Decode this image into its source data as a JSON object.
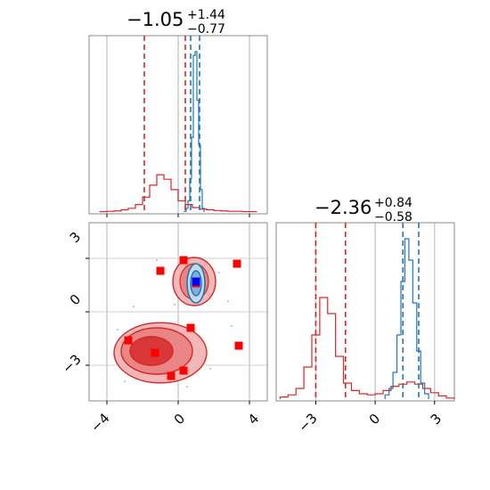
{
  "chart_data": [
    {
      "type": "histogram",
      "panel": "param1-marginal",
      "title": {
        "median": "−1.05",
        "plus": "+1.44",
        "minus": "−0.77"
      },
      "xlim": [
        -5,
        5
      ],
      "colors": {
        "red": "#d62728",
        "blue": "#1f77b4"
      },
      "vlines_red": [
        -1.9,
        0.4
      ],
      "vlines_blue": [
        0.7,
        1.2
      ],
      "series": [
        {
          "name": "",
          "color": "#d62728",
          "x": [
            -4.2,
            -3.8,
            -3.4,
            -3.0,
            -2.6,
            -2.2,
            -1.8,
            -1.4,
            -1.0,
            -0.6,
            -0.2,
            0.2,
            0.6,
            1.0,
            1.4,
            1.8,
            2.2,
            2.6,
            3.0,
            3.4,
            3.8,
            4.2
          ],
          "values": [
            1,
            2,
            3,
            6,
            10,
            20,
            40,
            72,
            100,
            88,
            60,
            30,
            20,
            12,
            8,
            6,
            4,
            3,
            2,
            2,
            1,
            1
          ]
        },
        {
          "name": "",
          "color": "#1f77b4",
          "x": [
            0.4,
            0.5,
            0.6,
            0.7,
            0.8,
            0.9,
            1.0,
            1.1,
            1.2,
            1.3,
            1.4
          ],
          "values": [
            2,
            10,
            30,
            90,
            200,
            420,
            430,
            300,
            180,
            60,
            10
          ]
        }
      ]
    },
    {
      "type": "scatter-contour",
      "panel": "joint",
      "xlim": [
        -5,
        5
      ],
      "ylim": [
        -5,
        5
      ],
      "xticks": [
        "−4",
        "0",
        "4"
      ],
      "yticks": [
        "3",
        "0",
        "−3"
      ],
      "points_red": [
        [
          0.3,
          2.9
        ],
        [
          3.3,
          2.7
        ],
        [
          -1.0,
          2.3
        ],
        [
          1.0,
          1.6
        ],
        [
          0.7,
          -0.9
        ],
        [
          -2.8,
          -1.6
        ],
        [
          3.4,
          -1.9
        ],
        [
          -1.3,
          -2.3
        ],
        [
          0.3,
          -3.3
        ],
        [
          -0.4,
          -3.6
        ]
      ],
      "points_blue": [
        [
          1.0,
          1.7
        ]
      ],
      "red_region": {
        "center": [
          -1.2,
          -2.2
        ],
        "spread": [
          2.0,
          1.3
        ]
      },
      "red_region_small": {
        "center": [
          0.9,
          1.7
        ],
        "spread": [
          1.0,
          1.0
        ]
      },
      "blue_region": {
        "center": [
          1.0,
          1.6
        ],
        "spread": [
          0.5,
          0.9
        ]
      }
    },
    {
      "type": "histogram",
      "panel": "param2-marginal",
      "title": {
        "median": "−2.36",
        "plus": "+0.84",
        "minus": "−0.58"
      },
      "xlim": [
        -5,
        4
      ],
      "xticks": [
        "−3",
        "0",
        "3"
      ],
      "vlines_red": [
        -3.0,
        -1.5
      ],
      "vlines_blue": [
        1.4,
        2.2
      ],
      "series": [
        {
          "name": "",
          "color": "#d62728",
          "x": [
            -4.6,
            -4.2,
            -3.8,
            -3.4,
            -3.0,
            -2.6,
            -2.2,
            -1.8,
            -1.4,
            -1.0,
            -0.6,
            -0.2,
            0.2,
            0.6,
            1.0,
            1.4,
            1.8,
            2.2,
            2.6,
            3.0,
            3.4,
            3.8
          ],
          "values": [
            2,
            4,
            10,
            30,
            60,
            95,
            80,
            40,
            15,
            8,
            5,
            4,
            5,
            8,
            12,
            14,
            16,
            14,
            10,
            6,
            3,
            1
          ]
        },
        {
          "name": "",
          "color": "#1f77b4",
          "x": [
            0.6,
            0.8,
            1.0,
            1.2,
            1.4,
            1.6,
            1.8,
            2.0,
            2.2,
            2.4,
            2.6
          ],
          "values": [
            4,
            10,
            25,
            60,
            110,
            150,
            130,
            90,
            45,
            15,
            5
          ]
        }
      ]
    }
  ]
}
